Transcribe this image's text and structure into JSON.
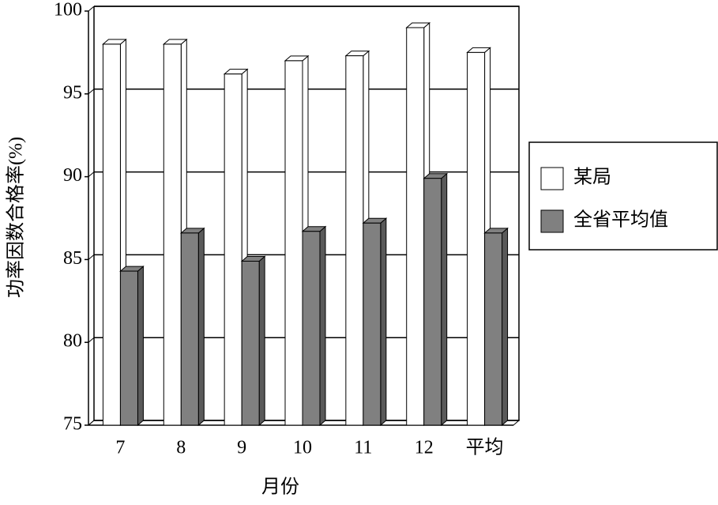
{
  "chart_data": {
    "type": "bar3d",
    "y_label": "功率因数合格率(%)",
    "x_label": "月份",
    "categories": [
      "7",
      "8",
      "9",
      "10",
      "11",
      "12",
      "平均"
    ],
    "series": [
      {
        "name": "某局",
        "color": "#ffffff",
        "values": [
          98.0,
          98.0,
          96.2,
          97.0,
          97.3,
          99.0,
          97.5
        ]
      },
      {
        "name": "全省平均值",
        "color": "#808080",
        "values": [
          84.3,
          86.6,
          84.9,
          86.7,
          87.2,
          89.9,
          86.6
        ]
      }
    ],
    "ylim": [
      75,
      100
    ],
    "yticks": [
      75,
      80,
      85,
      90,
      95,
      100
    ],
    "grid": true
  }
}
